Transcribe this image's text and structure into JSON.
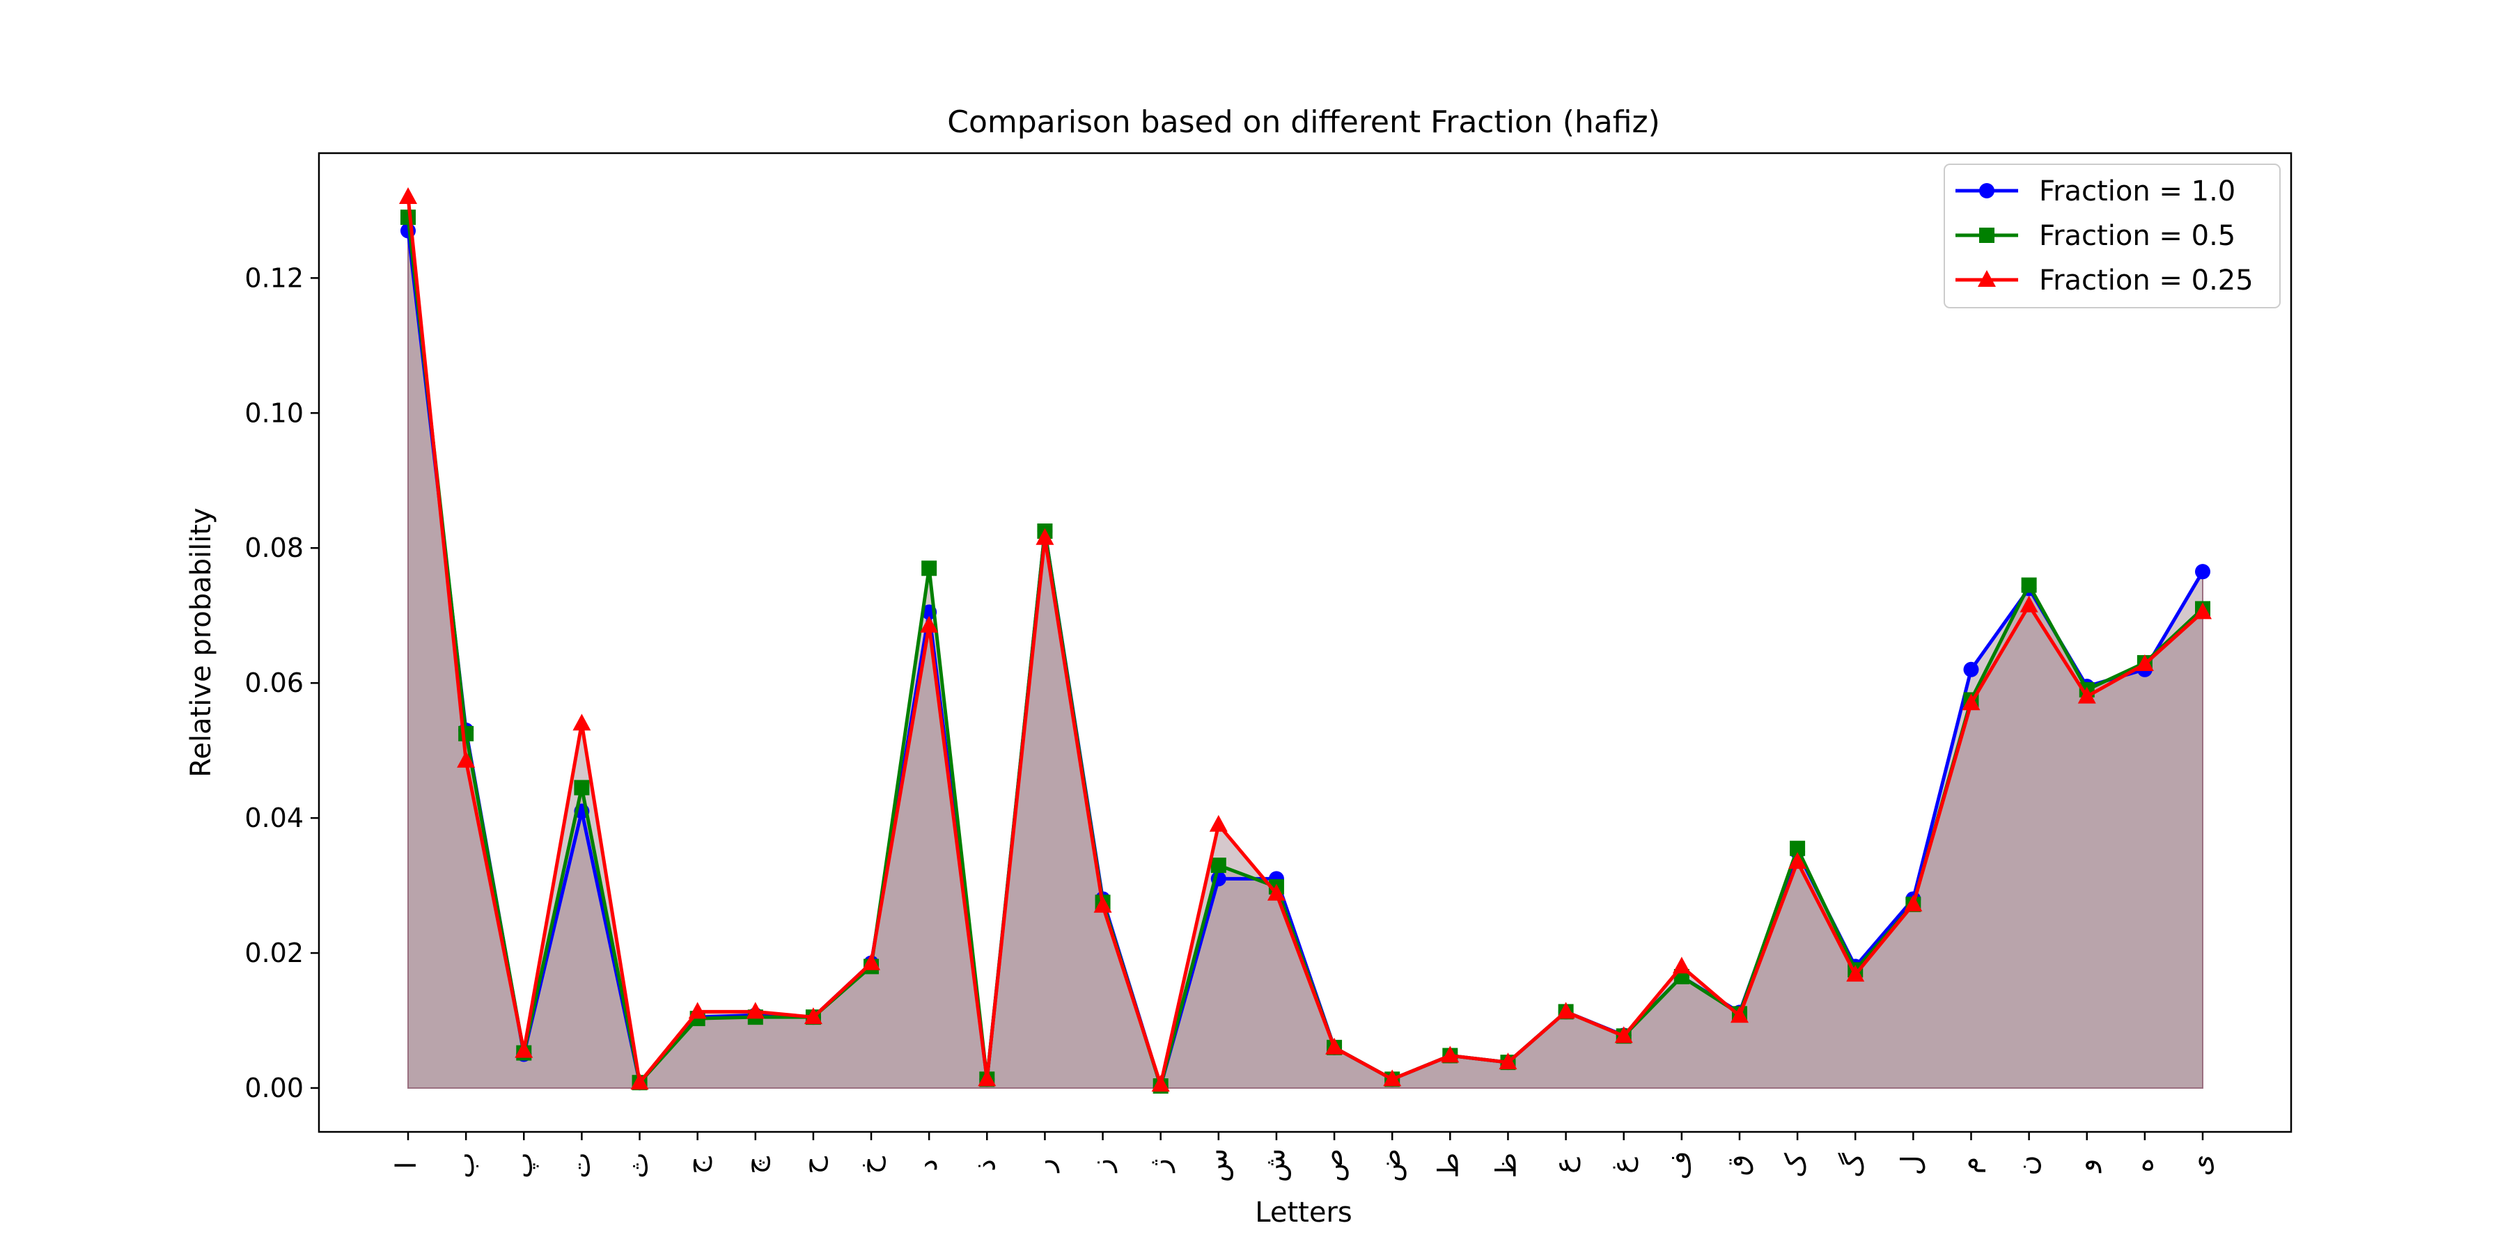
{
  "chart_data": {
    "type": "line",
    "title": "Comparison based on different Fraction (hafiz)",
    "xlabel": "Letters",
    "ylabel": "Relative probability",
    "ylim": [
      -0.0065,
      0.1385
    ],
    "yticks": [
      0.0,
      0.02,
      0.04,
      0.06,
      0.08,
      0.1,
      0.12
    ],
    "ytick_labels": [
      "0.00",
      "0.02",
      "0.04",
      "0.06",
      "0.08",
      "0.10",
      "0.12"
    ],
    "grid": false,
    "legend_position": "top-right",
    "categories": [
      "ا",
      "ب",
      "پ",
      "ت",
      "ث",
      "ج",
      "چ",
      "ح",
      "خ",
      "د",
      "ذ",
      "ر",
      "ز",
      "ژ",
      "س",
      "ش",
      "ص",
      "ض",
      "ط",
      "ظ",
      "ع",
      "غ",
      "ف",
      "ق",
      "ک",
      "گ",
      "ل",
      "م",
      "ن",
      "و",
      "ه",
      "ی"
    ],
    "series": [
      {
        "name": "Fraction = 1.0",
        "color": "#0000ff",
        "marker": "circle",
        "values": [
          0.127,
          0.053,
          0.005,
          0.041,
          0.0008,
          0.0105,
          0.0108,
          0.0105,
          0.0185,
          0.0705,
          0.0013,
          0.0825,
          0.028,
          0.0003,
          0.031,
          0.031,
          0.006,
          0.0013,
          0.0048,
          0.0038,
          0.0113,
          0.0078,
          0.0165,
          0.0112,
          0.035,
          0.018,
          0.028,
          0.062,
          0.074,
          0.0595,
          0.062,
          0.0765
        ]
      },
      {
        "name": "Fraction = 0.5",
        "color": "#008000",
        "marker": "square",
        "values": [
          0.129,
          0.0525,
          0.0052,
          0.0445,
          0.0008,
          0.0103,
          0.0105,
          0.0105,
          0.018,
          0.077,
          0.0013,
          0.0825,
          0.0275,
          0.0003,
          0.033,
          0.0298,
          0.006,
          0.0013,
          0.0048,
          0.0038,
          0.0113,
          0.0077,
          0.0165,
          0.011,
          0.0355,
          0.0175,
          0.0272,
          0.0575,
          0.0745,
          0.059,
          0.063,
          0.071
        ]
      },
      {
        "name": "Fraction = 0.25",
        "color": "#ff0000",
        "marker": "triangle",
        "values": [
          0.132,
          0.0485,
          0.0055,
          0.054,
          0.0008,
          0.0113,
          0.0113,
          0.0105,
          0.0185,
          0.0685,
          0.0013,
          0.0815,
          0.027,
          0.0005,
          0.039,
          0.0288,
          0.006,
          0.0013,
          0.0048,
          0.0038,
          0.0113,
          0.0077,
          0.018,
          0.0107,
          0.0335,
          0.0168,
          0.0272,
          0.057,
          0.0715,
          0.058,
          0.0628,
          0.0705
        ]
      }
    ],
    "fill_color": "#b39aa3",
    "fill_edge_color": "#9a6f80"
  }
}
